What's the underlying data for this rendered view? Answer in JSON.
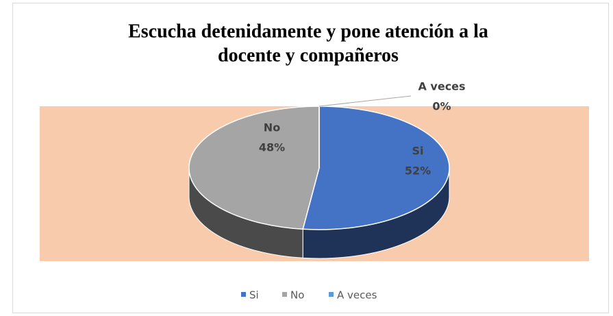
{
  "chart_data": {
    "type": "pie",
    "title": [
      "Escucha detenidamente y pone atención a la",
      "docente y compañeros"
    ],
    "categories": [
      "Si",
      "No",
      "A veces"
    ],
    "values": [
      52,
      48,
      0
    ],
    "value_labels": [
      "52%",
      "48%",
      "0%"
    ],
    "colors": [
      "#4472c4",
      "#a5a5a5",
      "#5b9bd5"
    ],
    "background": "#f8cbad",
    "legend": "bottom"
  }
}
